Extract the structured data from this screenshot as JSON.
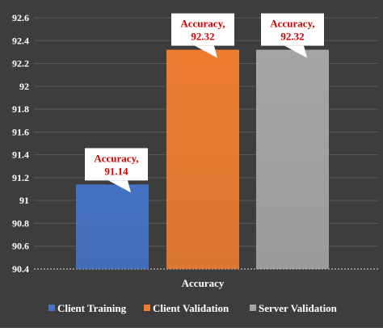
{
  "chart_data": {
    "type": "bar",
    "title": "",
    "xlabel": "Accuracy",
    "ylabel": "",
    "categories": [
      "Accuracy"
    ],
    "series": [
      {
        "name": "Client Training",
        "values": [
          91.14
        ],
        "color": "#4472c4"
      },
      {
        "name": "Client Validation",
        "values": [
          92.32
        ],
        "color": "#ed7d31"
      },
      {
        "name": "Server Validation",
        "values": [
          92.32
        ],
        "color": "#a5a5a5"
      }
    ],
    "ylim": [
      90.4,
      92.6
    ],
    "y_ticks": [
      "90.4",
      "90.6",
      "90.8",
      "91",
      "91.2",
      "91.4",
      "91.6",
      "91.8",
      "92",
      "92.2",
      "92.4",
      "92.6"
    ],
    "annotations": [
      {
        "line1": "Accuracy,",
        "line2": "91.14"
      },
      {
        "line1": "Accuracy,",
        "line2": "92.32"
      },
      {
        "line1": "Accuracy,",
        "line2": "92.32"
      }
    ],
    "grid": true,
    "legend_position": "bottom",
    "background_color": "#3d3d3d",
    "gridline_color": "#5a5a5a",
    "annotation_text_color": "#d00000"
  }
}
